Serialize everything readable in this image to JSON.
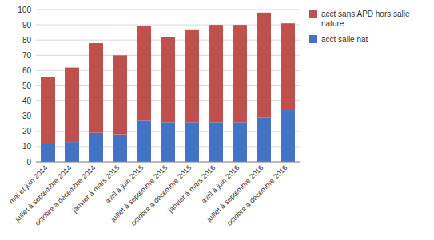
{
  "chart_data": {
    "type": "bar",
    "stacked": true,
    "categories": [
      "mai et juin 2014",
      "juillet à septembre 2014",
      "octobre à décembre 2014",
      "janvier à mars 2015",
      "avril à juin 2015",
      "juillet à septembre 2015",
      "octobre à décembre 2015",
      "janvier à mars 2016",
      "avril à juin 2016",
      "juillet à septembre 2016",
      "octobre à décembre 2016"
    ],
    "series": [
      {
        "name": "acct salle nat",
        "color": "#4472C4",
        "values": [
          12,
          13,
          19,
          18,
          27,
          26,
          26,
          26,
          26,
          29,
          34
        ]
      },
      {
        "name": "acct sans APD hors salle\nnature",
        "color": "#C0504D",
        "values": [
          44,
          49,
          59,
          52,
          62,
          56,
          61,
          64,
          64,
          69,
          57
        ]
      }
    ],
    "ylim": [
      0,
      100
    ],
    "yticks": [
      0,
      10,
      20,
      30,
      40,
      50,
      60,
      70,
      80,
      90,
      100
    ],
    "grid": true,
    "legend": "right"
  }
}
